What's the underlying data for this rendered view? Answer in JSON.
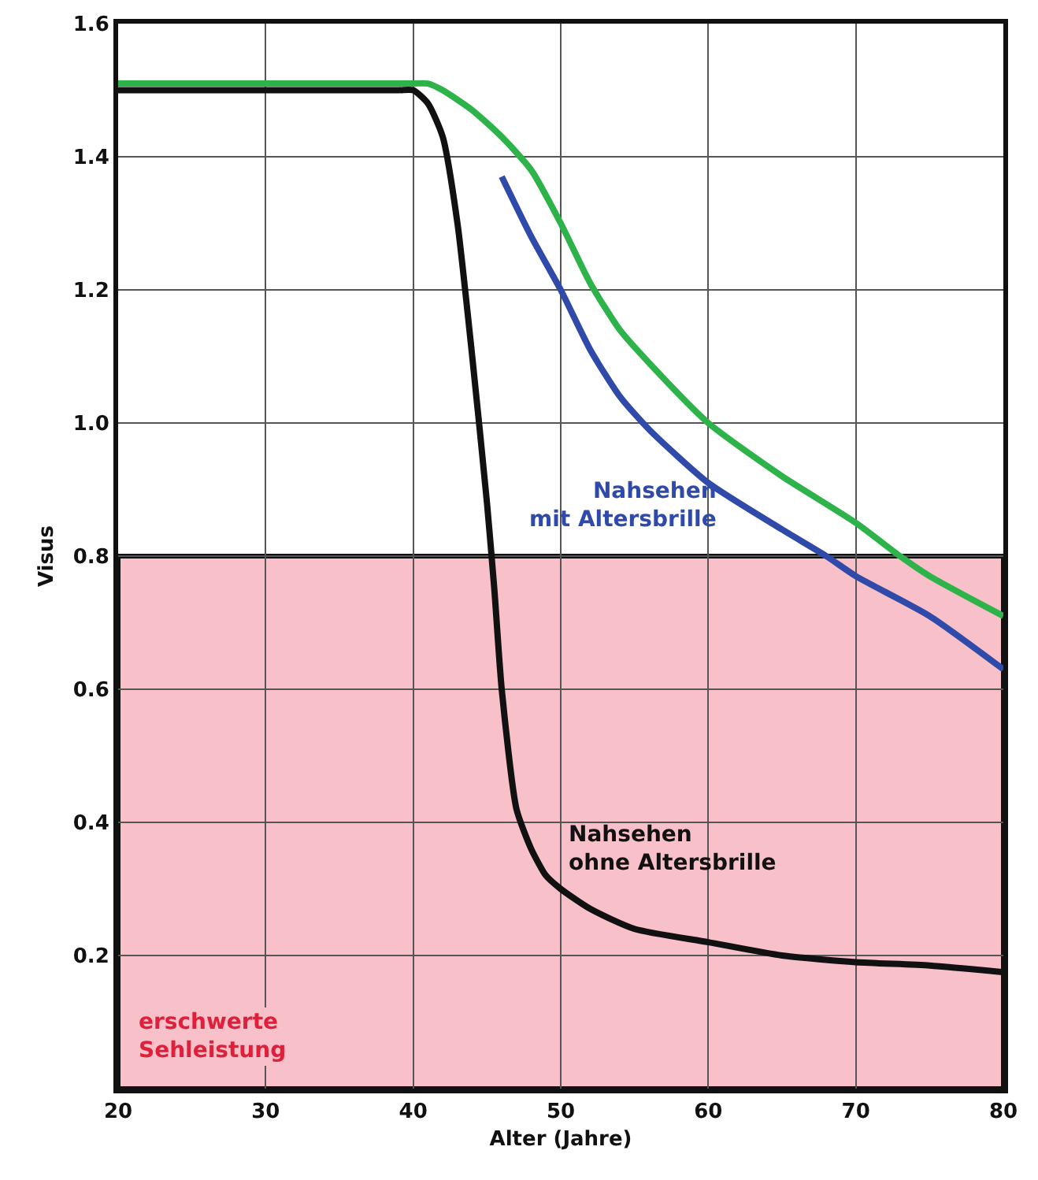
{
  "chart_data": {
    "type": "line",
    "xlabel": "Alter (Jahre)",
    "ylabel": "Visus",
    "xlim": [
      20,
      80
    ],
    "xticks": [
      20,
      30,
      40,
      50,
      60,
      70,
      80
    ],
    "ylim": [
      0,
      1.6
    ],
    "yticks": [
      {
        "value": 0.2,
        "label": "0.2"
      },
      {
        "value": 0.4,
        "label": "0.4"
      },
      {
        "value": 0.6,
        "label": "0.6"
      },
      {
        "value": 0.8,
        "label": "0.8"
      },
      {
        "value": 1,
        "label": "1.0"
      },
      {
        "value": 1.2,
        "label": "1.2"
      },
      {
        "value": 1.4,
        "label": "1.4"
      },
      {
        "value": 1.6,
        "label": "1.6"
      }
    ],
    "grid": true,
    "legend": false,
    "marker": "none",
    "line_style": "solid",
    "series": [
      {
        "color": "#2db34a",
        "x": [
          20,
          30,
          40,
          41,
          42,
          44,
          46,
          48,
          50,
          52,
          54,
          56,
          60,
          65,
          70,
          73,
          75,
          80
        ],
        "values": [
          1.51,
          1.51,
          1.51,
          1.51,
          1.5,
          1.47,
          1.43,
          1.38,
          1.3,
          1.21,
          1.14,
          1.09,
          1.0,
          0.92,
          0.85,
          0.8,
          0.77,
          0.71
        ]
      },
      {
        "name": "Nahsehen\nmit Altersbrille",
        "color": "#2f4aa8",
        "x": [
          46,
          48,
          50,
          52,
          54,
          56,
          60,
          65,
          68,
          70,
          75,
          80
        ],
        "values": [
          1.37,
          1.28,
          1.2,
          1.11,
          1.04,
          0.99,
          0.91,
          0.84,
          0.8,
          0.77,
          0.71,
          0.63
        ]
      },
      {
        "name": "Nahsehen\nohne Altersbrille",
        "color": "#111111",
        "x": [
          20,
          30,
          39,
          40,
          41,
          42,
          43,
          44,
          45,
          45.5,
          46,
          47,
          48,
          49,
          50,
          52,
          55,
          60,
          65,
          70,
          75,
          80
        ],
        "values": [
          1.5,
          1.5,
          1.5,
          1.5,
          1.48,
          1.43,
          1.3,
          1.1,
          0.88,
          0.75,
          0.6,
          0.42,
          0.36,
          0.32,
          0.3,
          0.27,
          0.24,
          0.22,
          0.2,
          0.19,
          0.185,
          0.175
        ]
      }
    ],
    "bands": [
      {
        "axis": "y",
        "from": 0,
        "to": 0.8,
        "label": "erschwerte\nSehleistung",
        "color": "#f8c0c8"
      }
    ]
  }
}
